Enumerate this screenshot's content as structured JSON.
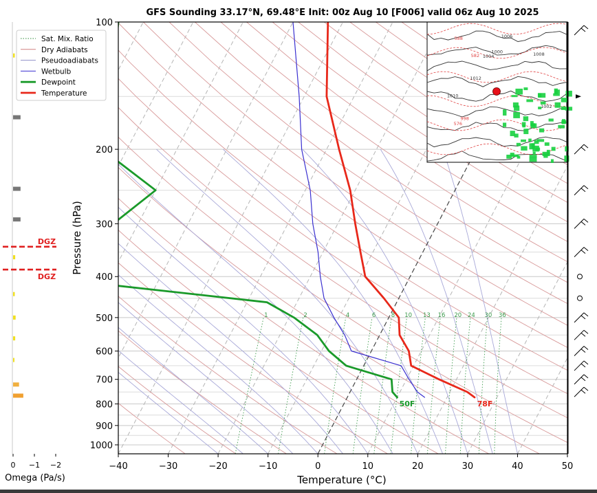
{
  "chart_data": [
    {
      "type": "skew-t",
      "title": "GFS Sounding 33.17°N, 69.48°E Init: 00z Aug 10 [F006] valid 06z Aug 10 2025",
      "xlabel": "Temperature (°C)",
      "ylabel": "Pressure (hPa)",
      "xlim": [
        -40,
        50
      ],
      "ylim_pressure_hpa": [
        1050,
        100
      ],
      "x_ticks": [
        "−40",
        "−30",
        "−20",
        "−10",
        "0",
        "10",
        "20",
        "30",
        "40",
        "50"
      ],
      "y_ticks": [
        "100",
        "200",
        "300",
        "400",
        "500",
        "600",
        "700",
        "800",
        "900",
        "1000"
      ],
      "grid": true,
      "legend_position": "top-left",
      "legend": [
        {
          "label": "Sat. Mix. Ratio",
          "color": "#2e8b3a",
          "style": "dotted"
        },
        {
          "label": "Dry Adiabats",
          "color": "#d08080",
          "style": "solid"
        },
        {
          "label": "Pseudoadiabats",
          "color": "#9090c8",
          "style": "solid"
        },
        {
          "label": "Wetbulb",
          "color": "#3a2fd0",
          "style": "solid"
        },
        {
          "label": "Dewpoint",
          "color": "#1a9a2a",
          "style": "thick"
        },
        {
          "label": "Temperature",
          "color": "#e8281a",
          "style": "thick"
        }
      ],
      "mixing_ratio_labels": [
        "1",
        "2",
        "4",
        "6",
        "8",
        "10",
        "13",
        "16",
        "20",
        "24",
        "30",
        "36"
      ],
      "series": [
        {
          "name": "Temperature",
          "color": "#e8281a",
          "pressure": [
            772,
            750,
            700,
            650,
            600,
            550,
            500,
            450,
            400,
            350,
            300,
            250,
            200,
            150,
            100
          ],
          "values": [
            25.5,
            23.5,
            16.5,
            9.5,
            7.5,
            4.0,
            2.0,
            -3.0,
            -9.0,
            -12.5,
            -16.5,
            -21.0,
            -27.5,
            -35.5,
            -43.0
          ]
        },
        {
          "name": "Dewpoint",
          "color": "#1a9a2a",
          "pressure": [
            772,
            750,
            700,
            650,
            600,
            550,
            500,
            460,
            420,
            400,
            350,
            300,
            250,
            200,
            150,
            100
          ],
          "values": [
            10.0,
            8.5,
            7.0,
            -3.5,
            -8.5,
            -12.5,
            -19.0,
            -26.0,
            -58.0,
            -70.0,
            -90.0,
            -65.0,
            -60.0,
            -75.0,
            -79.0,
            -85.0
          ]
        },
        {
          "name": "Wetbulb",
          "color": "#3a2fd0",
          "pressure": [
            772,
            750,
            700,
            650,
            600,
            550,
            500,
            450,
            400,
            350,
            300,
            250,
            200,
            150,
            100
          ],
          "values": [
            15.5,
            13.5,
            10.5,
            7.5,
            -4.0,
            -7.0,
            -11.0,
            -15.0,
            -18.0,
            -21.0,
            -25.0,
            -29.0,
            -35.0,
            -41.0,
            -50.0
          ]
        }
      ],
      "surface_labels": [
        {
          "text": "50F",
          "color": "#1a9a2a"
        },
        {
          "text": "78F",
          "color": "#e8281a"
        }
      ]
    },
    {
      "type": "bar",
      "xlabel": "Omega (Pa/s)",
      "x_ticks": [
        "0",
        "−1",
        "−2"
      ],
      "xlim": [
        0.3,
        -2.3
      ],
      "dgz_label": "DGZ",
      "dgz_pressure_hpa": [
        340,
        385
      ],
      "bars": [
        {
          "pressure": 120,
          "value": -0.08,
          "color": "#f0e020"
        },
        {
          "pressure": 168,
          "value": -0.35,
          "color": "#777777"
        },
        {
          "pressure": 248,
          "value": -0.35,
          "color": "#777777"
        },
        {
          "pressure": 293,
          "value": -0.35,
          "color": "#777777"
        },
        {
          "pressure": 360,
          "value": -0.1,
          "color": "#f0e020"
        },
        {
          "pressure": 440,
          "value": -0.08,
          "color": "#f0e020"
        },
        {
          "pressure": 500,
          "value": -0.12,
          "color": "#f0e020"
        },
        {
          "pressure": 560,
          "value": -0.1,
          "color": "#f0e020"
        },
        {
          "pressure": 630,
          "value": -0.05,
          "color": "#f0e020"
        },
        {
          "pressure": 720,
          "value": -0.28,
          "color": "#f0b040"
        },
        {
          "pressure": 765,
          "value": -0.48,
          "color": "#f0a030"
        }
      ]
    }
  ],
  "inset_map": {
    "pressure_labels": [
      "1012",
      "1010",
      "1008",
      "1006",
      "1004",
      "1002",
      "1000",
      "998",
      "582",
      "588",
      "576"
    ],
    "marker": "sounding-location",
    "colors": {
      "precip": "#18d040",
      "isobar": "#333333",
      "height": "#e04040"
    }
  },
  "wind_barbs": {
    "pressure": [
      100,
      150,
      200,
      250,
      300,
      350,
      400,
      450,
      500,
      550,
      600,
      650,
      700,
      750
    ],
    "icons": [
      "barb-icon",
      "pennant-icon",
      "barb-icon",
      "barb-icon",
      "barb-icon",
      "barb-icon",
      "calm-icon",
      "calm-icon",
      "barb-icon",
      "barb-icon",
      "barb-icon",
      "barb-icon",
      "barb-icon",
      "barb-icon"
    ]
  }
}
